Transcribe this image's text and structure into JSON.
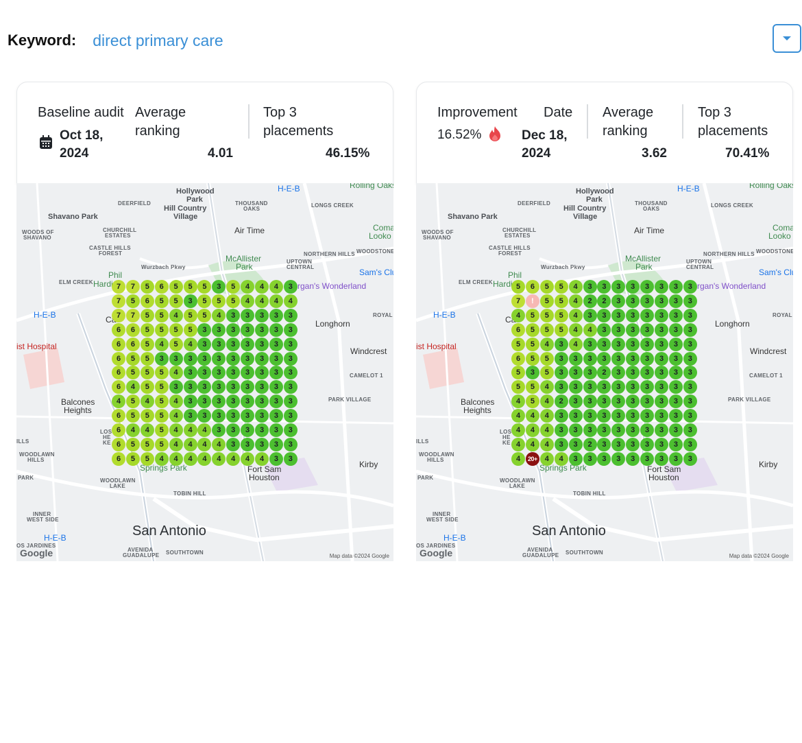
{
  "keyword": {
    "label": "Keyword:",
    "value": "direct primary care"
  },
  "colors": {
    "accent": "#3a8fd6",
    "rank3": "#4cbf30",
    "rank4": "#86d22e",
    "rank5": "#a6d92a",
    "rank6": "#b2dc2e",
    "rank7": "#bede34",
    "rank20": "#8b1111",
    "rank_error": "#f7b8b4"
  },
  "icons": {
    "dropdown": "chevron-down-icon",
    "calendar": "calendar-icon",
    "flame": "flame-icon"
  },
  "map_labels": [
    "Hollywood",
    "Park",
    "Hill Country",
    "Village",
    "Shavano Park",
    "DEERFIELD",
    "THOUSAND",
    "OAKS",
    "LONGS CREEK",
    "Air Time",
    "WOODS OF",
    "SHAVANO",
    "CHURCHILL",
    "ESTATES",
    "CASTLE HILLS",
    "FOREST",
    "McAllister",
    "Park",
    "NORTHERN HILLS",
    "UPTOWN",
    "CENTRAL",
    "WOODSTONE",
    "Sam's Clu",
    "ELM CREEK",
    "Hardi",
    "Phil",
    "Wurzbach Pkwy",
    "rgan's Wonderland",
    "H-E-B",
    "Longhorn",
    "ROYAL",
    "ist Hospital",
    "Windcrest",
    "CAMELOT 1",
    "PARK VILLAGE",
    "Balcones",
    "Heights",
    "ILLS",
    "WOODLAWN",
    "HILLS",
    "PARK",
    "Kirby",
    "Springs Park",
    "Fort Sam",
    "Houston",
    "WOODLAWN",
    "LAKE",
    "TOBIN HILL",
    "INNER",
    "WEST SIDE",
    "San Antonio",
    "OS JARDINES",
    "AVENIDA",
    "GUADALUPE",
    "SOUTHTOWN",
    "Coma",
    "Looko",
    "Rolling Oaks",
    "Ca",
    "LOS",
    "HE",
    "KE"
  ],
  "map_credit": "Map data ©2024 Google",
  "google_logo": "Google",
  "left": {
    "baseline_label": "Baseline audit",
    "date_line1": "Oct 18,",
    "date_line2": "2024",
    "avg_label_1": "Average",
    "avg_label_2": "ranking",
    "avg_value": "4.01",
    "top3_label_1": "Top 3",
    "top3_label_2": "placements",
    "top3_value": "46.15%",
    "grid": [
      [
        "7",
        "7",
        "5",
        "6",
        "5",
        "5",
        "5",
        "3",
        "5",
        "4",
        "4",
        "4",
        "3"
      ],
      [
        "7",
        "5",
        "6",
        "5",
        "5",
        "3",
        "5",
        "5",
        "5",
        "4",
        "4",
        "4",
        "4"
      ],
      [
        "7",
        "7",
        "5",
        "5",
        "4",
        "5",
        "5",
        "4",
        "3",
        "3",
        "3",
        "3",
        "3"
      ],
      [
        "6",
        "6",
        "5",
        "5",
        "5",
        "5",
        "3",
        "3",
        "3",
        "3",
        "3",
        "3",
        "3"
      ],
      [
        "6",
        "6",
        "5",
        "4",
        "5",
        "4",
        "3",
        "3",
        "3",
        "3",
        "3",
        "3",
        "3"
      ],
      [
        "6",
        "5",
        "5",
        "3",
        "3",
        "3",
        "3",
        "3",
        "3",
        "3",
        "3",
        "3",
        "3"
      ],
      [
        "6",
        "5",
        "5",
        "5",
        "4",
        "3",
        "3",
        "3",
        "3",
        "3",
        "3",
        "3",
        "3"
      ],
      [
        "6",
        "4",
        "5",
        "5",
        "3",
        "3",
        "3",
        "3",
        "3",
        "3",
        "3",
        "3",
        "3"
      ],
      [
        "4",
        "5",
        "4",
        "5",
        "4",
        "3",
        "3",
        "3",
        "3",
        "3",
        "3",
        "3",
        "3"
      ],
      [
        "6",
        "5",
        "5",
        "5",
        "4",
        "3",
        "3",
        "3",
        "3",
        "3",
        "3",
        "3",
        "3"
      ],
      [
        "6",
        "4",
        "4",
        "5",
        "4",
        "4",
        "4",
        "3",
        "3",
        "3",
        "3",
        "3",
        "3"
      ],
      [
        "6",
        "5",
        "5",
        "5",
        "4",
        "4",
        "4",
        "4",
        "3",
        "3",
        "3",
        "3",
        "3"
      ],
      [
        "6",
        "5",
        "5",
        "4",
        "4",
        "4",
        "4",
        "4",
        "4",
        "4",
        "4",
        "3",
        "3"
      ]
    ]
  },
  "right": {
    "improvement_label": "Improvement",
    "improvement_value": "16.52%",
    "date_label": "Date",
    "date_line1": "Dec 18,",
    "date_line2": "2024",
    "avg_label_1": "Average",
    "avg_label_2": "ranking",
    "avg_value": "3.62",
    "top3_label_1": "Top 3",
    "top3_label_2": "placements",
    "top3_value": "70.41%",
    "grid": [
      [
        "5",
        "6",
        "5",
        "5",
        "4",
        "3",
        "3",
        "3",
        "3",
        "3",
        "3",
        "3",
        "3"
      ],
      [
        "7",
        "!",
        "5",
        "5",
        "4",
        "2",
        "2",
        "3",
        "3",
        "3",
        "3",
        "3",
        "3"
      ],
      [
        "4",
        "5",
        "5",
        "5",
        "4",
        "3",
        "3",
        "3",
        "3",
        "3",
        "3",
        "3",
        "3"
      ],
      [
        "6",
        "5",
        "5",
        "5",
        "4",
        "4",
        "3",
        "3",
        "3",
        "3",
        "3",
        "3",
        "3"
      ],
      [
        "5",
        "5",
        "4",
        "3",
        "4",
        "3",
        "3",
        "3",
        "3",
        "3",
        "3",
        "3",
        "3"
      ],
      [
        "6",
        "5",
        "5",
        "3",
        "3",
        "3",
        "3",
        "3",
        "3",
        "3",
        "3",
        "3",
        "3"
      ],
      [
        "5",
        "3",
        "5",
        "3",
        "3",
        "3",
        "2",
        "3",
        "3",
        "3",
        "3",
        "3",
        "3"
      ],
      [
        "5",
        "5",
        "4",
        "3",
        "3",
        "3",
        "3",
        "3",
        "3",
        "3",
        "3",
        "3",
        "3"
      ],
      [
        "4",
        "5",
        "4",
        "2",
        "3",
        "3",
        "3",
        "3",
        "3",
        "3",
        "3",
        "3",
        "3"
      ],
      [
        "4",
        "4",
        "4",
        "3",
        "3",
        "3",
        "3",
        "3",
        "3",
        "3",
        "3",
        "3",
        "3"
      ],
      [
        "4",
        "4",
        "4",
        "3",
        "3",
        "3",
        "3",
        "3",
        "3",
        "3",
        "3",
        "3",
        "3"
      ],
      [
        "4",
        "4",
        "4",
        "3",
        "3",
        "2",
        "3",
        "3",
        "3",
        "3",
        "3",
        "3",
        "3"
      ],
      [
        "4",
        "20+",
        "4",
        "4",
        "3",
        "3",
        "3",
        "3",
        "3",
        "3",
        "3",
        "3",
        "3"
      ]
    ]
  }
}
